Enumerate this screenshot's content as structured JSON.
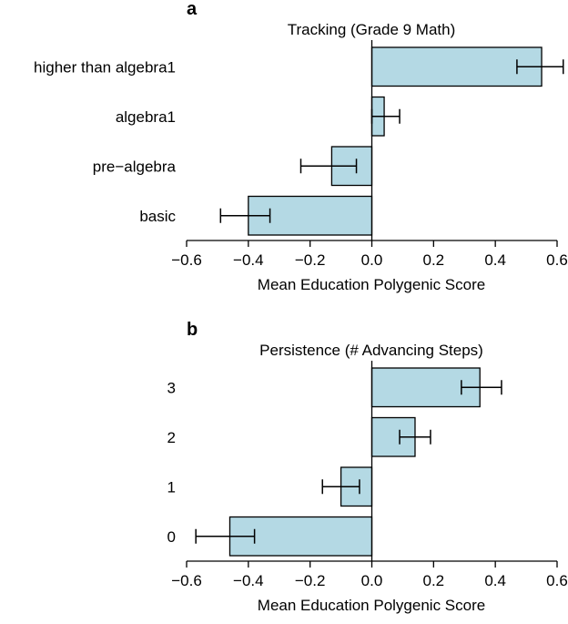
{
  "figure": {
    "background": "#ffffff",
    "text_color": "#000000"
  },
  "chart_data": [
    {
      "type": "bar",
      "orientation": "horizontal",
      "panel_label": "a",
      "title": "Tracking (Grade 9 Math)",
      "xlabel": "Mean Education Polygenic Score",
      "categories": [
        "higher than algebra1",
        "algebra1",
        "pre−algebra",
        "basic"
      ],
      "values": [
        0.55,
        0.04,
        -0.13,
        -0.4
      ],
      "error_low": [
        0.47,
        0.0,
        -0.23,
        -0.49
      ],
      "error_high": [
        0.62,
        0.09,
        -0.05,
        -0.33
      ],
      "xlim": [
        -0.6,
        0.6
      ],
      "xticks": [
        -0.6,
        -0.4,
        -0.2,
        0.0,
        0.2,
        0.4,
        0.6
      ],
      "xtick_labels": [
        "−0.6",
        "−0.4",
        "−0.2",
        "0.0",
        "0.2",
        "0.4",
        "0.6"
      ],
      "grid": false,
      "legend": "none",
      "bar_color": "#b4d9e4",
      "bar_border": "#000000"
    },
    {
      "type": "bar",
      "orientation": "horizontal",
      "panel_label": "b",
      "title": "Persistence (# Advancing Steps)",
      "xlabel": "Mean Education Polygenic Score",
      "categories": [
        "3",
        "2",
        "1",
        "0"
      ],
      "values": [
        0.35,
        0.14,
        -0.1,
        -0.46
      ],
      "error_low": [
        0.29,
        0.09,
        -0.16,
        -0.57
      ],
      "error_high": [
        0.42,
        0.19,
        -0.04,
        -0.38
      ],
      "xlim": [
        -0.6,
        0.6
      ],
      "xticks": [
        -0.6,
        -0.4,
        -0.2,
        0.0,
        0.2,
        0.4,
        0.6
      ],
      "xtick_labels": [
        "−0.6",
        "−0.4",
        "−0.2",
        "0.0",
        "0.2",
        "0.4",
        "0.6"
      ],
      "grid": false,
      "legend": "none",
      "bar_color": "#b4d9e4",
      "bar_border": "#000000"
    }
  ]
}
